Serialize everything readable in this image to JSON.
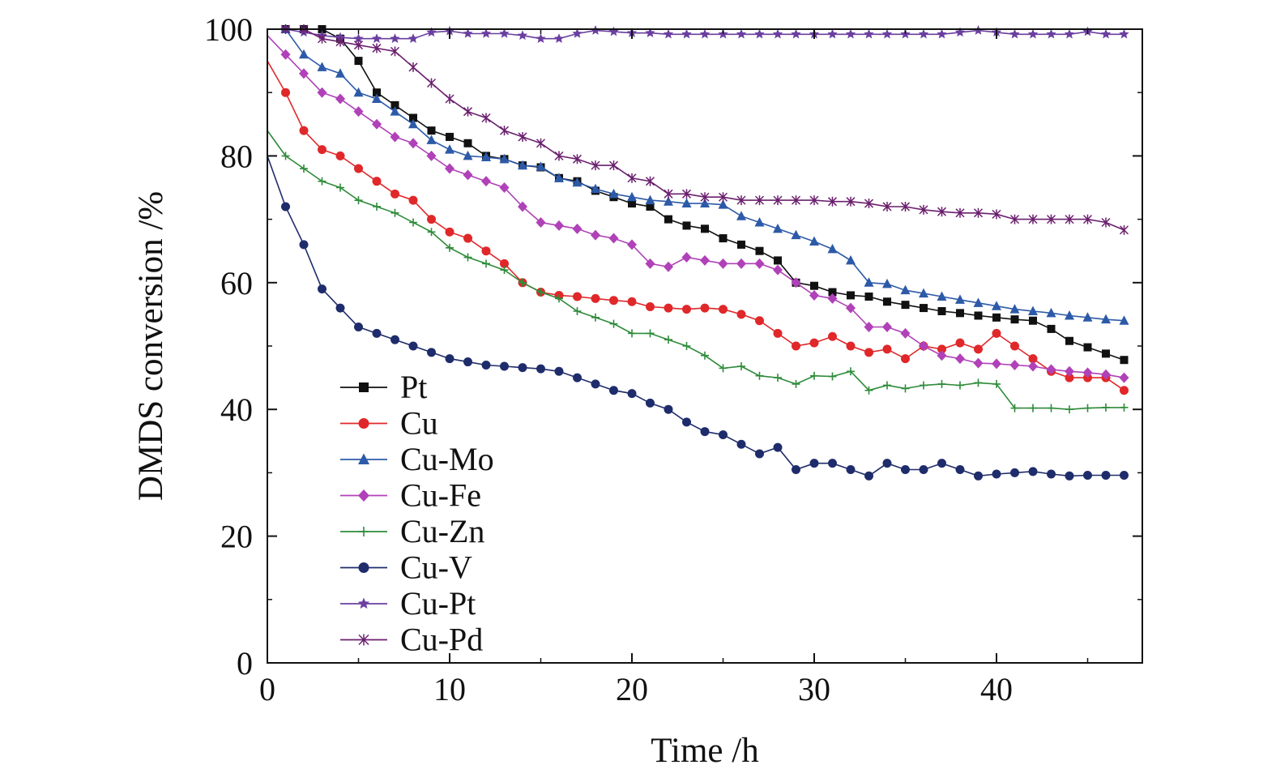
{
  "chart_data": {
    "type": "line",
    "title": "",
    "xlabel": "Time /h",
    "ylabel": "DMDS conversion /%",
    "xlim": [
      0,
      48
    ],
    "ylim": [
      0,
      100
    ],
    "x_ticks": [
      0,
      10,
      20,
      30,
      40
    ],
    "y_ticks": [
      0,
      20,
      40,
      60,
      80,
      100
    ],
    "grid": false,
    "legend_position": "lower-left",
    "series": [
      {
        "name": "Pt",
        "color": "#111111",
        "marker": "square",
        "x": [
          0,
          1,
          2,
          3,
          4,
          5,
          6,
          7,
          8,
          9,
          10,
          11,
          12,
          13,
          14,
          15,
          16,
          17,
          18,
          19,
          20,
          21,
          22,
          23,
          24,
          25,
          26,
          27,
          28,
          29,
          30,
          31,
          32,
          33,
          34,
          35,
          36,
          37,
          38,
          39,
          40,
          41,
          42,
          43,
          44,
          45,
          46,
          47
        ],
        "y": [
          100,
          100,
          100,
          100,
          98.5,
          95,
          90,
          88,
          86,
          84,
          83,
          82,
          80,
          79.5,
          78.5,
          78.2,
          76.5,
          76,
          74.5,
          73.5,
          72.5,
          72,
          70,
          69,
          68.5,
          67,
          66,
          65,
          63.5,
          60,
          59.5,
          58.5,
          58,
          57.8,
          57,
          56.5,
          56,
          55.5,
          55.2,
          54.8,
          54.5,
          54.2,
          54,
          52.7,
          50.8,
          49.8,
          48.8,
          47.8
        ]
      },
      {
        "name": "Cu",
        "color": "#e0282a",
        "marker": "circle",
        "x": [
          0,
          1,
          2,
          3,
          4,
          5,
          6,
          7,
          8,
          9,
          10,
          11,
          12,
          13,
          14,
          15,
          16,
          17,
          18,
          19,
          20,
          21,
          22,
          23,
          24,
          25,
          26,
          27,
          28,
          29,
          30,
          31,
          32,
          33,
          34,
          35,
          36,
          37,
          38,
          39,
          40,
          41,
          42,
          43,
          44,
          45,
          46,
          47
        ],
        "y": [
          95,
          90,
          84,
          81,
          80,
          78,
          76,
          74,
          73,
          70,
          68,
          67,
          65,
          63,
          60,
          58.5,
          58,
          57.8,
          57.5,
          57.2,
          57,
          56.2,
          56,
          55.8,
          56,
          55.8,
          55,
          54,
          52,
          50,
          50.5,
          51.5,
          50,
          49,
          49.5,
          48,
          50,
          49.5,
          50.5,
          49.5,
          52,
          50,
          48,
          46,
          45,
          45,
          45,
          43
        ]
      },
      {
        "name": "Cu-Mo",
        "color": "#2d5aa8",
        "marker": "triangle",
        "x": [
          0,
          1,
          2,
          3,
          4,
          5,
          6,
          7,
          8,
          9,
          10,
          11,
          12,
          13,
          14,
          15,
          16,
          17,
          18,
          19,
          20,
          21,
          22,
          23,
          24,
          25,
          26,
          27,
          28,
          29,
          30,
          31,
          32,
          33,
          34,
          35,
          36,
          37,
          38,
          39,
          40,
          41,
          42,
          43,
          44,
          45,
          46,
          47
        ],
        "y": [
          100,
          100,
          96,
          94,
          93,
          90,
          89,
          87,
          85,
          82.5,
          81,
          80,
          79.8,
          79.5,
          78.5,
          78.3,
          76.5,
          75.8,
          74.8,
          74,
          73.5,
          73,
          72.8,
          72.5,
          72.5,
          72.3,
          70.5,
          69.5,
          68.5,
          67.5,
          66.5,
          65.3,
          63.5,
          60,
          59.8,
          58.8,
          58.3,
          57.8,
          57.3,
          56.8,
          56.3,
          55.8,
          55.5,
          55.2,
          54.8,
          54.5,
          54.2,
          54
        ]
      },
      {
        "name": "Cu-Fe",
        "color": "#b041b8",
        "marker": "diamond",
        "x": [
          0,
          1,
          2,
          3,
          4,
          5,
          6,
          7,
          8,
          9,
          10,
          11,
          12,
          13,
          14,
          15,
          16,
          17,
          18,
          19,
          20,
          21,
          22,
          23,
          24,
          25,
          26,
          27,
          28,
          29,
          30,
          31,
          32,
          33,
          34,
          35,
          36,
          37,
          38,
          39,
          40,
          41,
          42,
          43,
          44,
          45,
          46,
          47
        ],
        "y": [
          99,
          96,
          93,
          90,
          89,
          87,
          85,
          83,
          82,
          80,
          78,
          77,
          76,
          75,
          72,
          69.5,
          69,
          68.5,
          67.5,
          67,
          66,
          63,
          62.5,
          64,
          63.5,
          63,
          63,
          63,
          62,
          60,
          58,
          57.5,
          56,
          53,
          53,
          52,
          50,
          48.5,
          48,
          47.3,
          47.2,
          47,
          46.8,
          46.3,
          46,
          45.8,
          45.5,
          45
        ]
      },
      {
        "name": "Cu-Zn",
        "color": "#2e8b3a",
        "marker": "plus",
        "x": [
          0,
          1,
          2,
          3,
          4,
          5,
          6,
          7,
          8,
          9,
          10,
          11,
          12,
          13,
          14,
          15,
          16,
          17,
          18,
          19,
          20,
          21,
          22,
          23,
          24,
          25,
          26,
          27,
          28,
          29,
          30,
          31,
          32,
          33,
          34,
          35,
          36,
          37,
          38,
          39,
          40,
          41,
          42,
          43,
          44,
          45,
          46,
          47
        ],
        "y": [
          84,
          80,
          78,
          76,
          75,
          73,
          72,
          71,
          69.5,
          68,
          65.5,
          64,
          63,
          62,
          60,
          58.5,
          57.5,
          55.5,
          54.5,
          53.5,
          52,
          52,
          51,
          50,
          48.5,
          46.5,
          46.8,
          45.3,
          45,
          44,
          45.3,
          45.2,
          46,
          43,
          43.8,
          43.3,
          43.8,
          44,
          43.8,
          44.2,
          44,
          40.2,
          40.2,
          40.2,
          40,
          40.2,
          40.3,
          40.3
        ]
      },
      {
        "name": "Cu-V",
        "color": "#1f2c6b",
        "marker": "circle",
        "x": [
          0,
          1,
          2,
          3,
          4,
          5,
          6,
          7,
          8,
          9,
          10,
          11,
          12,
          13,
          14,
          15,
          16,
          17,
          18,
          19,
          20,
          21,
          22,
          23,
          24,
          25,
          26,
          27,
          28,
          29,
          30,
          31,
          32,
          33,
          34,
          35,
          36,
          37,
          38,
          39,
          40,
          41,
          42,
          43,
          44,
          45,
          46,
          47
        ],
        "y": [
          80,
          72,
          66,
          59,
          56,
          53,
          52,
          51,
          50,
          49,
          48,
          47.5,
          47,
          46.8,
          46.6,
          46.4,
          46,
          45,
          44,
          43,
          42.5,
          41,
          40,
          38,
          36.5,
          36,
          34.5,
          33,
          34,
          30.5,
          31.5,
          31.5,
          30.5,
          29.5,
          31.5,
          30.5,
          30.5,
          31.5,
          30.5,
          29.5,
          29.8,
          30,
          30.2,
          29.8,
          29.5,
          29.6,
          29.6,
          29.6
        ]
      },
      {
        "name": "Cu-Pt",
        "color": "#6a3fa0",
        "marker": "star",
        "x": [
          0,
          1,
          2,
          3,
          4,
          5,
          6,
          7,
          8,
          9,
          10,
          11,
          12,
          13,
          14,
          15,
          16,
          17,
          18,
          19,
          20,
          21,
          22,
          23,
          24,
          25,
          26,
          27,
          28,
          29,
          30,
          31,
          32,
          33,
          34,
          35,
          36,
          37,
          38,
          39,
          40,
          41,
          42,
          43,
          44,
          45,
          46,
          47
        ],
        "y": [
          100,
          100,
          99.5,
          99,
          98.7,
          98.5,
          98.5,
          98.5,
          98.5,
          99.5,
          99.7,
          99.3,
          99.3,
          99.3,
          99,
          98.5,
          98.5,
          99.3,
          99.8,
          99.6,
          99.4,
          99.4,
          99.2,
          99.2,
          99.2,
          99.2,
          99.2,
          99.2,
          99.2,
          99.2,
          99.2,
          99.2,
          99.2,
          99.2,
          99.2,
          99.2,
          99.2,
          99.2,
          99.5,
          99.8,
          99.5,
          99.2,
          99.2,
          99.2,
          99.2,
          99.6,
          99.2,
          99.2
        ]
      },
      {
        "name": "Cu-Pd",
        "color": "#6b1f6e",
        "marker": "asterisk",
        "x": [
          0,
          1,
          2,
          3,
          4,
          5,
          6,
          7,
          8,
          9,
          10,
          11,
          12,
          13,
          14,
          15,
          16,
          17,
          18,
          19,
          20,
          21,
          22,
          23,
          24,
          25,
          26,
          27,
          28,
          29,
          30,
          31,
          32,
          33,
          34,
          35,
          36,
          37,
          38,
          39,
          40,
          41,
          42,
          43,
          44,
          45,
          46,
          47
        ],
        "y": [
          100,
          100,
          100,
          98.5,
          98,
          97.5,
          97,
          96.5,
          94,
          91.5,
          89,
          87,
          86,
          84,
          83,
          82,
          80,
          79.5,
          78.5,
          78.5,
          76.5,
          76,
          74,
          74,
          73.5,
          73.5,
          73,
          73,
          73,
          73,
          73,
          72.8,
          72.8,
          72.5,
          72,
          72,
          71.5,
          71.2,
          71,
          71,
          70.8,
          70,
          70,
          70,
          70,
          70,
          69.5,
          68.3
        ]
      }
    ]
  }
}
